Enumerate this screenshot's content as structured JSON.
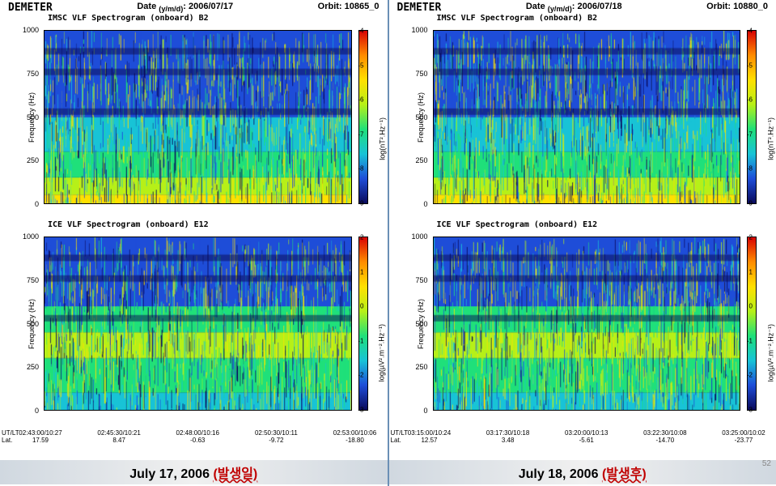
{
  "panels": [
    {
      "key": "left",
      "header": {
        "mission": "DEMETER",
        "date_label": "Date",
        "date_sub": "(y/m/d)",
        "date_value": "2006/07/17",
        "orbit_label": "Orbit:",
        "orbit_value": "10865_0"
      },
      "charts": [
        {
          "title": "IMSC VLF Spectrogram (onboard) B2",
          "ylabel": "Frequency (Hz)",
          "ylim": [
            0,
            1000
          ],
          "ytick_step": 250,
          "cb_label": "log(nT².Hz⁻¹)",
          "cb_lim": [
            -9,
            -4
          ],
          "cb_tick_step": 1,
          "spectral_bands": [
            {
              "f0": 0,
              "f1": 50,
              "color": "#ffe000"
            },
            {
              "f0": 50,
              "f1": 150,
              "color": "#b6f018"
            },
            {
              "f0": 150,
              "f1": 300,
              "color": "#1fe07a"
            },
            {
              "f0": 300,
              "f1": 500,
              "color": "#18c3d6"
            },
            {
              "f0": 500,
              "f1": 1000,
              "color": "#1e4dd8"
            }
          ]
        },
        {
          "title": "ICE VLF Spectrogram (onboard) E12",
          "ylabel": "Frequency (Hz)",
          "ylim": [
            0,
            1000
          ],
          "ytick_step": 250,
          "cb_label": "log(µV².m⁻².Hz⁻¹)",
          "cb_lim": [
            -3,
            2
          ],
          "cb_tick_step": 1,
          "spectral_bands": [
            {
              "f0": 0,
              "f1": 100,
              "color": "#18c3d6"
            },
            {
              "f0": 100,
              "f1": 300,
              "color": "#1fe07a"
            },
            {
              "f0": 300,
              "f1": 450,
              "color": "#b6f018"
            },
            {
              "f0": 450,
              "f1": 600,
              "color": "#1fe07a"
            },
            {
              "f0": 600,
              "f1": 1000,
              "color": "#1e4dd8"
            }
          ]
        }
      ],
      "xaxis": {
        "utlt_label": "UT/LT",
        "lat_label": "Lat.",
        "ticks": [
          {
            "pos": 0.0,
            "ut": "02:43:00/10:27",
            "lat": "17.59"
          },
          {
            "pos": 0.25,
            "ut": "02:45:30/10:21",
            "lat": "8.47"
          },
          {
            "pos": 0.5,
            "ut": "02:48:00/10:16",
            "lat": "-0.63"
          },
          {
            "pos": 0.75,
            "ut": "02:50:30/10:11",
            "lat": "-9.72"
          },
          {
            "pos": 1.0,
            "ut": "02:53:00/10:06",
            "lat": "-18.80"
          }
        ]
      },
      "caption": {
        "date": "July 17, 2006",
        "korean": "(발생일)"
      }
    },
    {
      "key": "right",
      "header": {
        "mission": "DEMETER",
        "date_label": "Date",
        "date_sub": "(y/m/d)",
        "date_value": "2006/07/18",
        "orbit_label": "Orbit:",
        "orbit_value": "10880_0"
      },
      "charts": [
        {
          "title": "IMSC VLF Spectrogram (onboard) B2",
          "ylabel": "Frequency (Hz)",
          "ylim": [
            0,
            1000
          ],
          "ytick_step": 250,
          "cb_label": "log(nT².Hz⁻¹)",
          "cb_lim": [
            -9,
            -4
          ],
          "cb_tick_step": 1,
          "spectral_bands": [
            {
              "f0": 0,
              "f1": 50,
              "color": "#ffe000"
            },
            {
              "f0": 50,
              "f1": 150,
              "color": "#b6f018"
            },
            {
              "f0": 150,
              "f1": 300,
              "color": "#1fe07a"
            },
            {
              "f0": 300,
              "f1": 500,
              "color": "#18c3d6"
            },
            {
              "f0": 500,
              "f1": 1000,
              "color": "#1e4dd8"
            }
          ]
        },
        {
          "title": "ICE VLF Spectrogram (onboard) E12",
          "ylabel": "Frequency (Hz)",
          "ylim": [
            0,
            1000
          ],
          "ytick_step": 250,
          "cb_label": "log(µV².m⁻².Hz⁻¹)",
          "cb_lim": [
            -3,
            2
          ],
          "cb_tick_step": 1,
          "spectral_bands": [
            {
              "f0": 0,
              "f1": 100,
              "color": "#18c3d6"
            },
            {
              "f0": 100,
              "f1": 300,
              "color": "#1fe07a"
            },
            {
              "f0": 300,
              "f1": 450,
              "color": "#b6f018"
            },
            {
              "f0": 450,
              "f1": 600,
              "color": "#1fe07a"
            },
            {
              "f0": 600,
              "f1": 1000,
              "color": "#1e4dd8"
            }
          ]
        }
      ],
      "xaxis": {
        "utlt_label": "UT/LT",
        "lat_label": "Lat.",
        "ticks": [
          {
            "pos": 0.0,
            "ut": "03:15:00/10:24",
            "lat": "12.57"
          },
          {
            "pos": 0.25,
            "ut": "03:17:30/10:18",
            "lat": "3.48"
          },
          {
            "pos": 0.5,
            "ut": "03:20:00/10:13",
            "lat": "-5.61"
          },
          {
            "pos": 0.75,
            "ut": "03:22:30/10:08",
            "lat": "-14.70"
          },
          {
            "pos": 1.0,
            "ut": "03:25:00/10:02",
            "lat": "-23.77"
          }
        ]
      },
      "caption": {
        "date": "July 18, 2006",
        "korean": "(발생후)"
      },
      "pagenum": "52"
    }
  ],
  "colors": {
    "background": "#ffffff",
    "divider": "#6a8fb5",
    "spectrogram_bg": "#1e3a8a",
    "caption_bg_start": "#d0d8e0",
    "caption_bg_end": "#f0f0f0"
  }
}
